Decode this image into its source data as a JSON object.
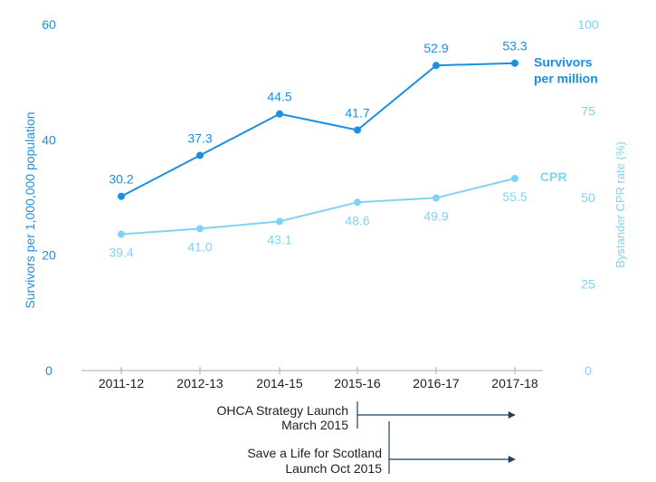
{
  "chart_data": {
    "type": "line",
    "categories": [
      "2011-12",
      "2012-13",
      "2014-15",
      "2015-16",
      "2016-17",
      "2017-18"
    ],
    "y_left": {
      "label": "Survivors per 1,000,000 population",
      "range": [
        0,
        60
      ],
      "ticks": [
        "0",
        "20",
        "40",
        "60"
      ]
    },
    "y_right": {
      "label": "Bystander CPR rate (%)",
      "range": [
        0,
        100
      ],
      "ticks": [
        "0",
        "25",
        "50",
        "75",
        "100"
      ]
    },
    "series": [
      {
        "name": "Survivors per million",
        "name_lines": [
          "Survivors",
          "per million"
        ],
        "axis": "left",
        "color": "#1a8fe3",
        "values": [
          30.2,
          37.3,
          44.5,
          41.7,
          52.9,
          53.3
        ],
        "labels": [
          "30.2",
          "37.3",
          "44.5",
          "41.7",
          "52.9",
          "53.3"
        ]
      },
      {
        "name": "CPR",
        "name_lines": [
          "CPR"
        ],
        "axis": "right",
        "color": "#7fd3f3",
        "values": [
          39.4,
          41.0,
          43.1,
          48.6,
          49.9,
          55.5
        ],
        "labels": [
          "39.4",
          "41.0",
          "43.1",
          "48.6",
          "49.9",
          "55.5"
        ]
      }
    ],
    "annotations": [
      {
        "lines": [
          "OHCA Strategy Launch",
          "March 2015"
        ],
        "start_category": "2015-16",
        "end_category": "2017-18"
      },
      {
        "lines": [
          "Save a Life  for  Scotland",
          "Launch Oct 2015"
        ],
        "start_category": "2015-16",
        "end_category": "2017-18"
      }
    ],
    "grid": false,
    "legend": "inline-right"
  }
}
